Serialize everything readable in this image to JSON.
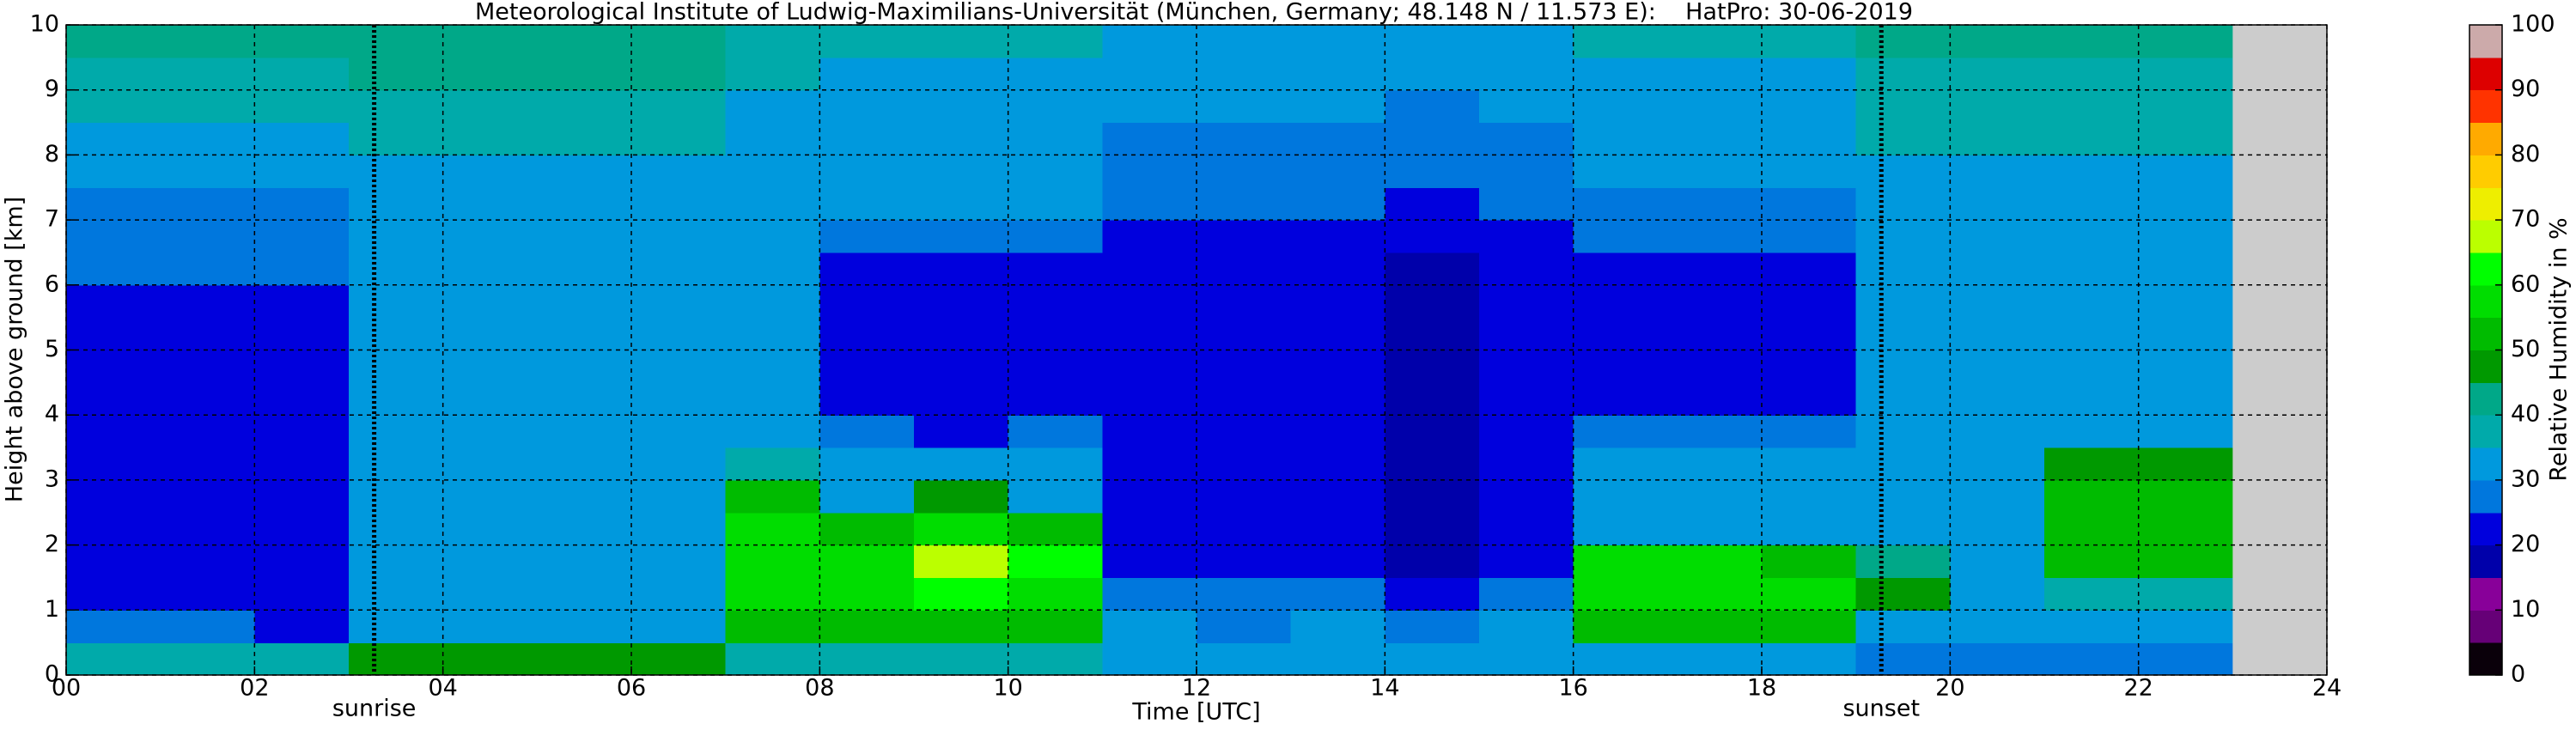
{
  "chart_data": {
    "type": "heatmap",
    "title": "Meteorological Institute of Ludwig-Maximilians-Universität (München, Germany; 48.148 N / 11.573 E):    HatPro: 30-06-2019",
    "xlabel": "Time [UTC]",
    "ylabel": "Height above ground [km]",
    "xlim": [
      0,
      24
    ],
    "ylim": [
      0,
      10
    ],
    "xticks": [
      {
        "value": 0,
        "label": "00"
      },
      {
        "value": 2,
        "label": "02"
      },
      {
        "value": 4,
        "label": "04"
      },
      {
        "value": 6,
        "label": "06"
      },
      {
        "value": 8,
        "label": "08"
      },
      {
        "value": 10,
        "label": "10"
      },
      {
        "value": 12,
        "label": "12"
      },
      {
        "value": 14,
        "label": "14"
      },
      {
        "value": 16,
        "label": "16"
      },
      {
        "value": 18,
        "label": "18"
      },
      {
        "value": 20,
        "label": "20"
      },
      {
        "value": 22,
        "label": "22"
      },
      {
        "value": 24,
        "label": "24"
      }
    ],
    "yticks": [
      0,
      1,
      2,
      3,
      4,
      5,
      6,
      7,
      8,
      9,
      10
    ],
    "grid": true,
    "x_edges": [
      0,
      1,
      2,
      3,
      4,
      5,
      6,
      7,
      8,
      9,
      10,
      11,
      12,
      13,
      14,
      15,
      16,
      17,
      18,
      19,
      20,
      21,
      22,
      23
    ],
    "y_edges": [
      0,
      0.5,
      1,
      1.5,
      2,
      2.5,
      3,
      3.5,
      4,
      4.5,
      5,
      5.5,
      6,
      6.5,
      7,
      7.5,
      8,
      8.5,
      9,
      9.5,
      10
    ],
    "z": [
      [
        38,
        38,
        38,
        45,
        45,
        45,
        45,
        35,
        35,
        35,
        35,
        32,
        32,
        32,
        32,
        32,
        30,
        30,
        30,
        28,
        28,
        28,
        28
      ],
      [
        25,
        25,
        24,
        33,
        33,
        33,
        33,
        52,
        50,
        52,
        50,
        30,
        28,
        30,
        28,
        30,
        52,
        52,
        52,
        32,
        30,
        32,
        32
      ],
      [
        22,
        22,
        22,
        33,
        33,
        33,
        33,
        56,
        56,
        62,
        58,
        26,
        27,
        27,
        22,
        28,
        55,
        55,
        55,
        45,
        34,
        35,
        35
      ],
      [
        20,
        21,
        20,
        32,
        32,
        32,
        32,
        56,
        58,
        65,
        60,
        24,
        24,
        24,
        16,
        24,
        55,
        55,
        52,
        40,
        34,
        52,
        52
      ],
      [
        20,
        20,
        20,
        32,
        32,
        32,
        32,
        55,
        52,
        58,
        52,
        22,
        22,
        22,
        16,
        22,
        30,
        30,
        30,
        33,
        33,
        52,
        52
      ],
      [
        21,
        21,
        21,
        32,
        32,
        32,
        32,
        52,
        34,
        45,
        34,
        22,
        21,
        22,
        16,
        22,
        31,
        31,
        31,
        32,
        32,
        52,
        52
      ],
      [
        22,
        22,
        22,
        31,
        31,
        31,
        31,
        35,
        33,
        32,
        33,
        21,
        21,
        21,
        16,
        21,
        31,
        31,
        31,
        32,
        32,
        45,
        45
      ],
      [
        22,
        22,
        22,
        31,
        31,
        31,
        31,
        32,
        26,
        24,
        26,
        21,
        21,
        21,
        16,
        21,
        28,
        28,
        28,
        32,
        32,
        32,
        32
      ],
      [
        22,
        22,
        22,
        31,
        31,
        31,
        31,
        31,
        21,
        21,
        21,
        21,
        21,
        21,
        15,
        21,
        24,
        24,
        24,
        32,
        32,
        32,
        32
      ],
      [
        23,
        23,
        23,
        31,
        31,
        31,
        31,
        31,
        21,
        20,
        21,
        20,
        20,
        20,
        15,
        20,
        22,
        22,
        22,
        32,
        32,
        32,
        32
      ],
      [
        24,
        24,
        24,
        31,
        31,
        31,
        31,
        31,
        21,
        20,
        21,
        20,
        20,
        20,
        15,
        20,
        22,
        22,
        22,
        32,
        32,
        32,
        32
      ],
      [
        24,
        24,
        24,
        31,
        31,
        31,
        31,
        31,
        21,
        21,
        21,
        20,
        20,
        20,
        16,
        20,
        23,
        23,
        23,
        32,
        32,
        32,
        32
      ],
      [
        25,
        25,
        25,
        31,
        31,
        31,
        31,
        31,
        22,
        22,
        22,
        21,
        21,
        21,
        18,
        21,
        24,
        24,
        24,
        32,
        32,
        32,
        32
      ],
      [
        26,
        26,
        26,
        31,
        31,
        31,
        31,
        32,
        26,
        26,
        26,
        22,
        22,
        22,
        20,
        22,
        27,
        27,
        27,
        32,
        32,
        32,
        32
      ],
      [
        28,
        28,
        28,
        32,
        32,
        32,
        32,
        32,
        30,
        30,
        30,
        25,
        25,
        25,
        22,
        25,
        29,
        29,
        29,
        33,
        33,
        33,
        33
      ],
      [
        30,
        30,
        30,
        33,
        33,
        33,
        33,
        32,
        31,
        31,
        31,
        27,
        27,
        27,
        25,
        27,
        31,
        31,
        31,
        34,
        34,
        34,
        34
      ],
      [
        33,
        33,
        33,
        36,
        36,
        36,
        36,
        33,
        32,
        32,
        32,
        29,
        29,
        29,
        27,
        29,
        32,
        32,
        32,
        36,
        36,
        36,
        36
      ],
      [
        36,
        36,
        36,
        38,
        38,
        38,
        38,
        34,
        33,
        33,
        33,
        30,
        30,
        30,
        29,
        30,
        33,
        33,
        33,
        38,
        38,
        38,
        38
      ],
      [
        38,
        38,
        38,
        41,
        41,
        41,
        41,
        35,
        34,
        34,
        34,
        31,
        31,
        31,
        30,
        31,
        34,
        34,
        34,
        39,
        39,
        39,
        39
      ],
      [
        40,
        40,
        40,
        42,
        42,
        42,
        42,
        36,
        35,
        35,
        35,
        32,
        32,
        32,
        31,
        32,
        35,
        35,
        35,
        40,
        40,
        40,
        40
      ]
    ],
    "nodata_color": "#cccccc",
    "annotations": [
      {
        "x": 3.27,
        "label": "sunrise"
      },
      {
        "x": 19.27,
        "label": "sunset"
      }
    ],
    "colorbar": {
      "label": "Relative Humidity in %",
      "levels": [
        0,
        5,
        10,
        15,
        20,
        25,
        30,
        35,
        40,
        45,
        50,
        55,
        60,
        65,
        70,
        75,
        80,
        85,
        90,
        95,
        100
      ],
      "colors": [
        "#0a000a",
        "#660077",
        "#880099",
        "#0000aa",
        "#0000dd",
        "#0077dd",
        "#0099dd",
        "#00aaaa",
        "#00a888",
        "#009900",
        "#00bb00",
        "#00dd00",
        "#00ff00",
        "#bbff00",
        "#eeee00",
        "#ffcc00",
        "#ffaa00",
        "#ff3300",
        "#dd0000",
        "#ccaaaa"
      ],
      "ticks": [
        0,
        10,
        20,
        30,
        40,
        50,
        60,
        70,
        80,
        90,
        100
      ]
    }
  }
}
